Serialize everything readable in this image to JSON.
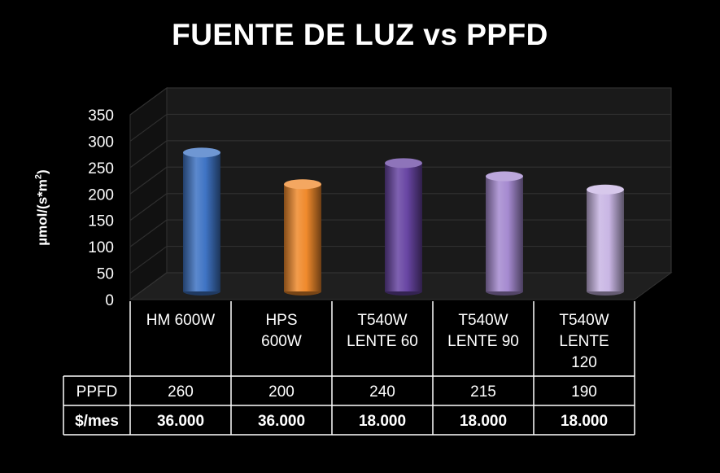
{
  "chart_data": {
    "type": "bar",
    "title": "FUENTE DE LUZ vs PPFD",
    "ylabel": "µmol/(s*m²)",
    "ylim": [
      0,
      350
    ],
    "yticks": [
      0,
      50,
      100,
      150,
      200,
      250,
      300,
      350
    ],
    "grid": true,
    "categories": [
      [
        "HM 600W"
      ],
      [
        "HPS",
        "600W"
      ],
      [
        "T540W",
        "LENTE 60"
      ],
      [
        "T540W",
        "LENTE 90"
      ],
      [
        "T540W",
        "LENTE",
        "120"
      ]
    ],
    "values": [
      260,
      200,
      240,
      215,
      190
    ],
    "bar_colors": [
      "#3f74c4",
      "#f08a2c",
      "#6845a3",
      "#a58ad0",
      "#c9b6e4"
    ],
    "table": {
      "rows": [
        {
          "label": "PPFD",
          "bold": false,
          "cells": [
            "260",
            "200",
            "240",
            "215",
            "190"
          ]
        },
        {
          "label": "$/mes",
          "bold": true,
          "cells": [
            "36.000",
            "36.000",
            "18.000",
            "18.000",
            "18.000"
          ]
        }
      ]
    }
  }
}
